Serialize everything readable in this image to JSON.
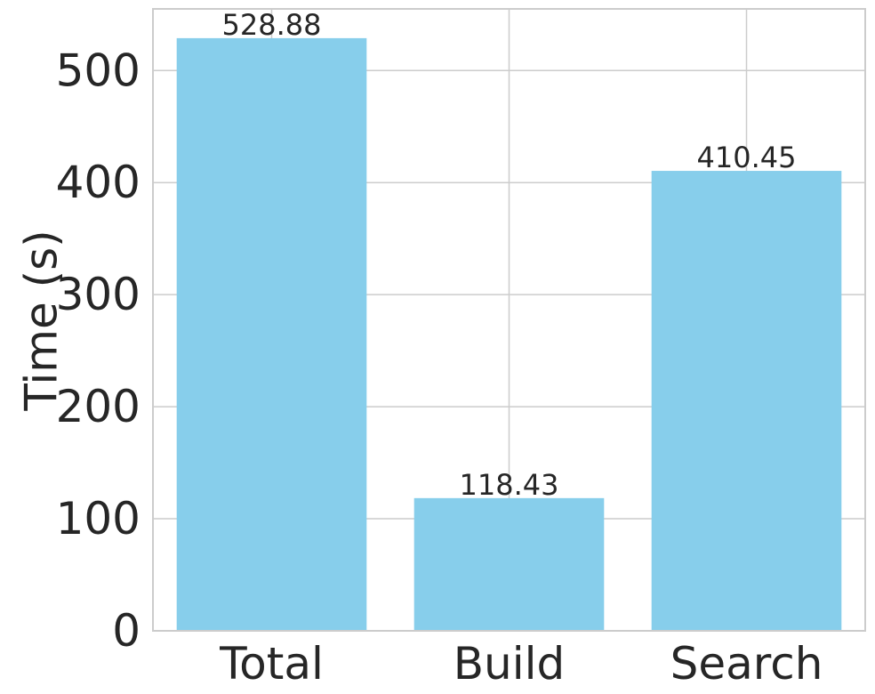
{
  "chart_data": {
    "type": "bar",
    "categories": [
      "Total",
      "Build",
      "Search"
    ],
    "values": [
      528.88,
      118.43,
      410.45
    ],
    "data_labels": [
      "528.88",
      "118.43",
      "410.45"
    ],
    "title": "",
    "xlabel": "",
    "ylabel": "Time (s)",
    "ylim": [
      0,
      555
    ],
    "yticks": [
      0,
      100,
      200,
      300,
      400,
      500
    ],
    "grid": true,
    "legend": "none",
    "bar_color": "#87ceeb"
  }
}
